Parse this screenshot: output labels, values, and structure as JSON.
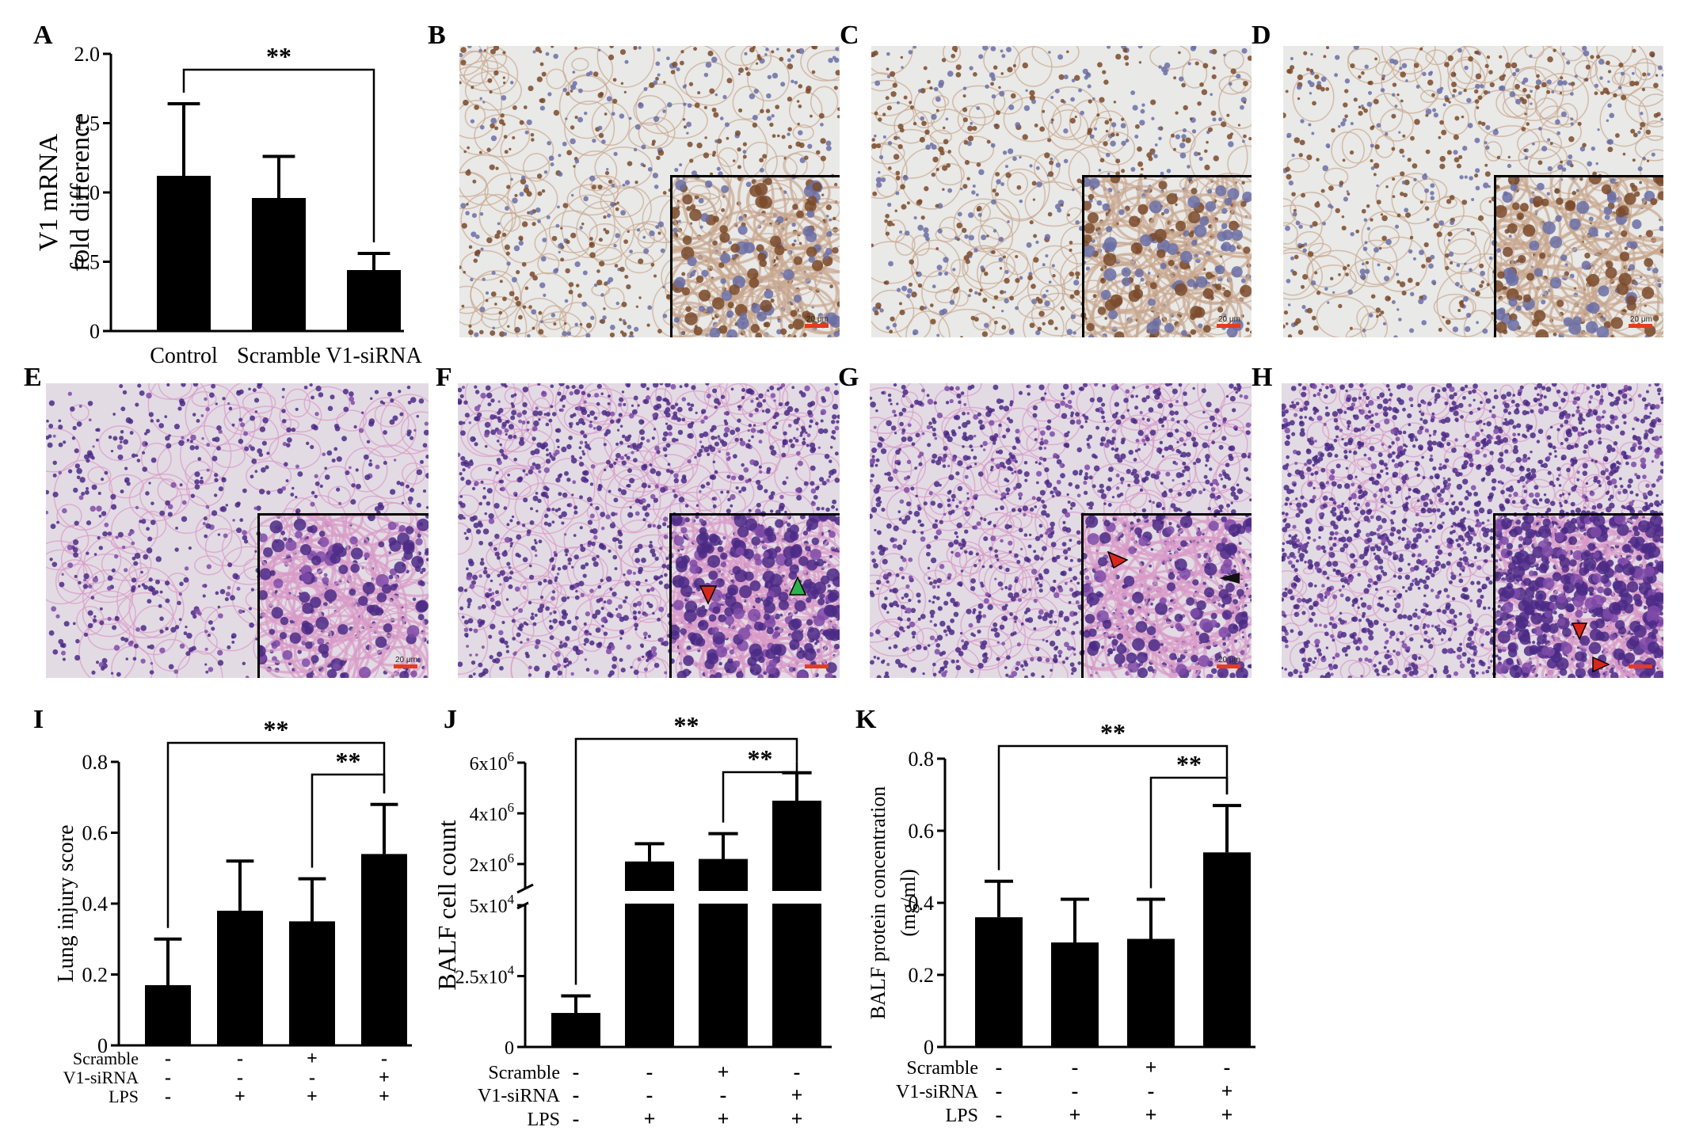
{
  "panels": {
    "A": "A",
    "B": "B",
    "C": "C",
    "D": "D",
    "E": "E",
    "F": "F",
    "G": "G",
    "H": "H",
    "I": "I",
    "J": "J",
    "K": "K"
  },
  "scale_bar_label": "20 μm",
  "colors": {
    "bar": "#000000",
    "ihc_background": "#e9e9e7",
    "he_background": "#e3dbe4",
    "arrow_red": "#d8261c",
    "arrow_green": "#2bb24c",
    "arrow_black": "#111111",
    "scale_bar": "#e53b1e"
  },
  "row_labels": {
    "scramble": "Scramble",
    "siRNA": "V1-siRNA",
    "lps": "LPS"
  },
  "chart_data": [
    {
      "id": "A",
      "type": "bar",
      "categories": [
        "Control",
        "Scramble",
        "V1-siRNA"
      ],
      "values": [
        1.12,
        0.96,
        0.44
      ],
      "errors": [
        0.52,
        0.3,
        0.12
      ],
      "ylabel_lines": [
        "V1 mRNA",
        "fold difference"
      ],
      "ylim": [
        0,
        2.0
      ],
      "yticks": [
        "0",
        "0.5",
        "1.0",
        "1.5",
        "2.0"
      ],
      "significance": [
        {
          "from": 0,
          "to": 2,
          "label": "**"
        }
      ]
    },
    {
      "id": "I",
      "type": "bar",
      "categories": [
        "",
        "",
        "",
        ""
      ],
      "conditions": {
        "scramble": [
          "-",
          "-",
          "+",
          "-"
        ],
        "siRNA": [
          "-",
          "-",
          "-",
          "+"
        ],
        "lps": [
          "-",
          "+",
          "+",
          "+"
        ]
      },
      "values": [
        0.17,
        0.38,
        0.35,
        0.54
      ],
      "errors": [
        0.13,
        0.14,
        0.12,
        0.14
      ],
      "ylabel_lines": [
        "Lung injury score"
      ],
      "ylim": [
        0,
        0.8
      ],
      "yticks": [
        "0",
        "0.2",
        "0.4",
        "0.6",
        "0.8"
      ],
      "significance": [
        {
          "from": 0,
          "to": 3,
          "label": "**"
        },
        {
          "from": 2,
          "to": 3,
          "label": "**"
        }
      ]
    },
    {
      "id": "J",
      "type": "bar",
      "categories": [
        "",
        "",
        "",
        ""
      ],
      "conditions": {
        "scramble": [
          "-",
          "-",
          "+",
          "-"
        ],
        "siRNA": [
          "-",
          "-",
          "-",
          "+"
        ],
        "lps": [
          "-",
          "+",
          "+",
          "+"
        ]
      },
      "values": [
        12000,
        2100000,
        2200000,
        4500000
      ],
      "errors": [
        6000,
        700000,
        1000000,
        1100000
      ],
      "axis_break": [
        50000,
        1000000
      ],
      "ylabel_lines": [
        "BALF cell count"
      ],
      "yticks_lower": [
        {
          "value": 0,
          "label": "0"
        },
        {
          "value": 25000,
          "label": "2.5x10",
          "exp": "4"
        },
        {
          "value": 50000,
          "label": "5x10",
          "exp": "4"
        }
      ],
      "yticks_upper": [
        {
          "value": 2000000,
          "label": "2x10",
          "exp": "6"
        },
        {
          "value": 4000000,
          "label": "4x10",
          "exp": "6"
        },
        {
          "value": 6000000,
          "label": "6x10",
          "exp": "6"
        }
      ],
      "significance": [
        {
          "from": 0,
          "to": 3,
          "label": "**"
        },
        {
          "from": 2,
          "to": 3,
          "label": "**"
        }
      ]
    },
    {
      "id": "K",
      "type": "bar",
      "categories": [
        "",
        "",
        "",
        ""
      ],
      "conditions": {
        "scramble": [
          "-",
          "-",
          "+",
          "-"
        ],
        "siRNA": [
          "-",
          "-",
          "-",
          "+"
        ],
        "lps": [
          "-",
          "+",
          "+",
          "+"
        ]
      },
      "values": [
        0.36,
        0.29,
        0.3,
        0.54
      ],
      "errors": [
        0.1,
        0.12,
        0.11,
        0.13
      ],
      "ylabel_lines": [
        "BALF protein concentration",
        "(mg/ml)"
      ],
      "ylim": [
        0,
        0.8
      ],
      "yticks": [
        "0",
        "0.2",
        "0.4",
        "0.6",
        "0.8"
      ],
      "significance": [
        {
          "from": 0,
          "to": 3,
          "label": "**"
        },
        {
          "from": 2,
          "to": 3,
          "label": "**"
        }
      ]
    }
  ]
}
